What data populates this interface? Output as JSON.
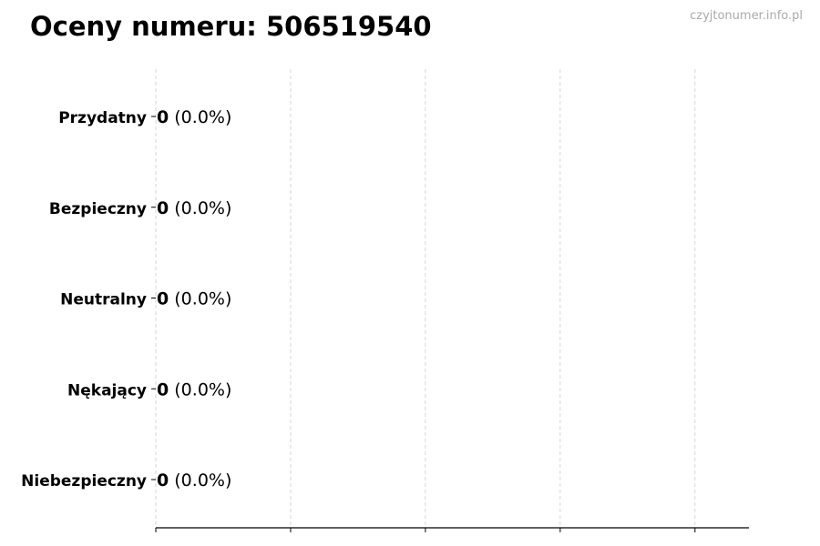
{
  "chart_data": {
    "type": "bar",
    "orientation": "horizontal",
    "title": "Oceny numeru: 506519540",
    "watermark": "czyjtonumer.info.pl",
    "categories": [
      "Przydatny",
      "Bezpieczny",
      "Neutralny",
      "Nękający",
      "Niebezpieczny"
    ],
    "values": [
      0,
      0,
      0,
      0,
      0
    ],
    "percent_labels": [
      "(0.0%)",
      "(0.0%)",
      "(0.0%)",
      "(0.0%)",
      "(0.0%)"
    ],
    "xlim": [
      0,
      4.4
    ],
    "x_gridlines": [
      0,
      1,
      2,
      3,
      4
    ],
    "x_tick_labels_shown": false,
    "grid": "vertical dashed",
    "colors": {
      "bar_edge": "#000000",
      "grid": "#cccccc",
      "watermark": "#aaaaaa"
    }
  }
}
